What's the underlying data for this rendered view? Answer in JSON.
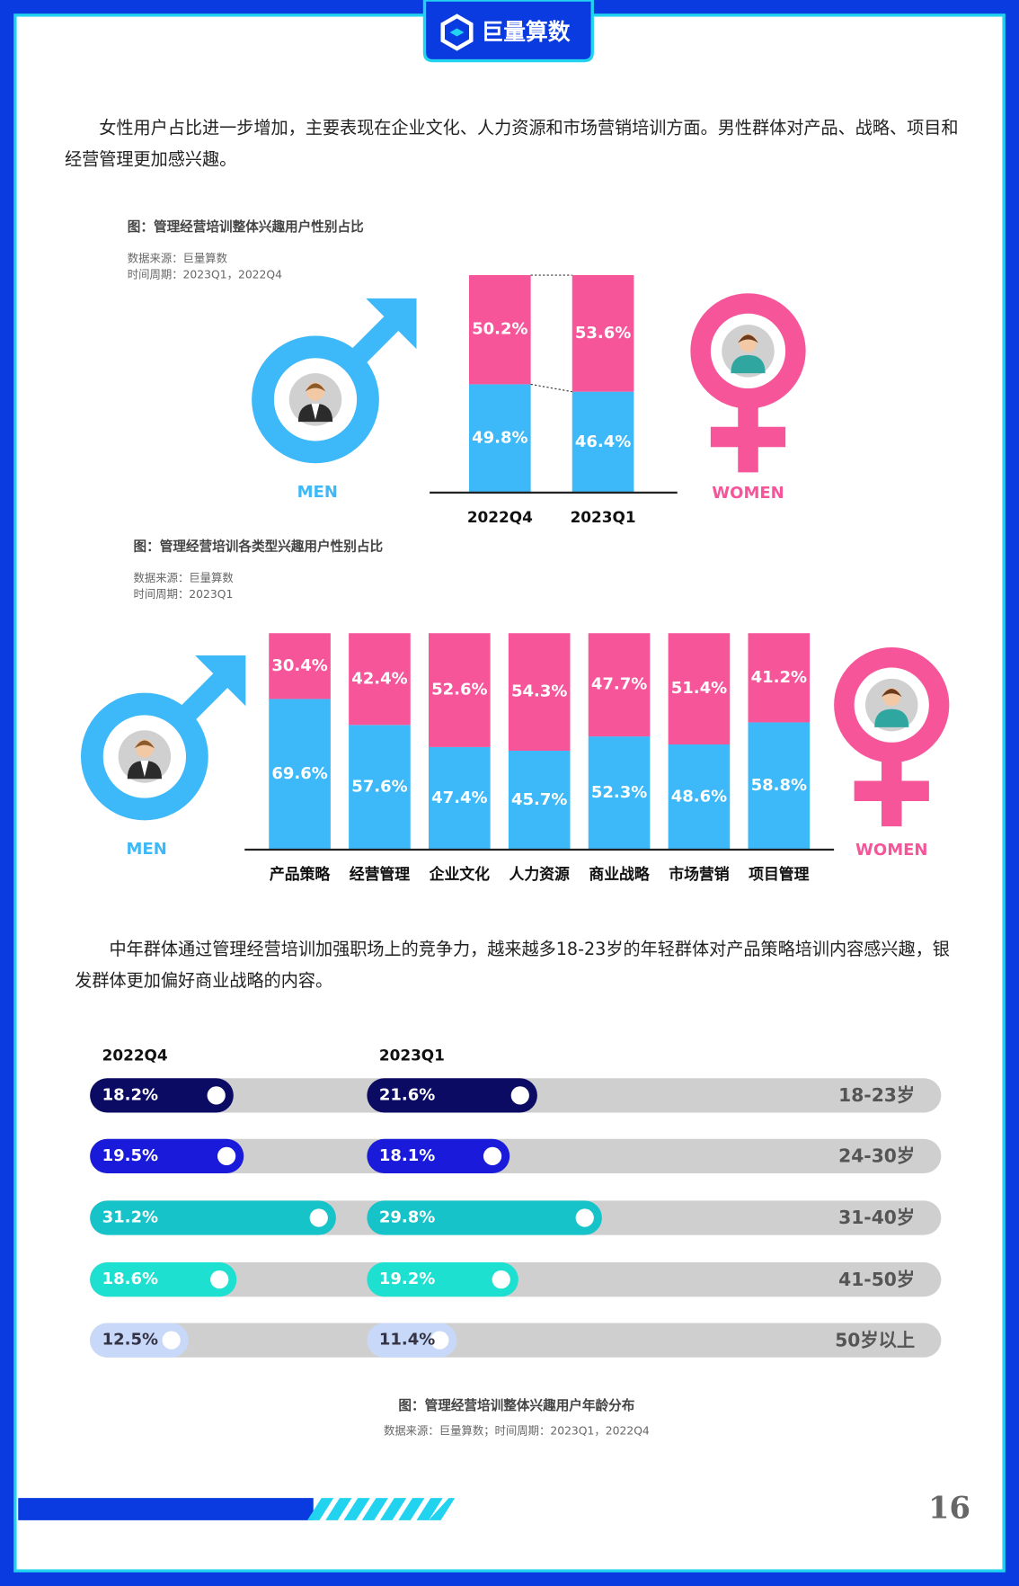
{
  "logo": "巨量算数",
  "paragraphs": [
    "女性用户占比进一步增加，主要表现在企业文化、人力资源和市场营销培训方面。男性群体对产品、战略、项目和经营管理更加感兴趣。",
    "中年群体通过管理经营培训加强职场上的竞争力，越来越多18-23岁的年轻群体对产品策略培训内容感兴趣，银发群体更加偏好商业战略的内容。"
  ],
  "chart_data": [
    {
      "type": "stacked_bar",
      "title": "图：管理经营培训整体兴趣用户性别占比",
      "source": "数据来源：巨量算数",
      "period": "时间周期：2023Q1，2022Q4",
      "categories": [
        "2022Q4",
        "2023Q1"
      ],
      "ylim": [
        0,
        100
      ],
      "series": [
        {
          "name": "MEN",
          "color": "#3db8f8",
          "values": [
            49.8,
            46.4
          ],
          "value_labels": [
            "49.8%",
            "46.4%"
          ]
        },
        {
          "name": "WOMEN",
          "color": "#f7559a",
          "values": [
            50.2,
            53.6
          ],
          "value_labels": [
            "50.2%",
            "53.6%"
          ]
        }
      ]
    },
    {
      "type": "stacked_bar",
      "title": "图：管理经营培训各类型兴趣用户性别占比",
      "source": "数据来源：巨量算数",
      "period": "时间周期：2023Q1",
      "categories": [
        "产品策略",
        "经营管理",
        "企业文化",
        "人力资源",
        "商业战略",
        "市场营销",
        "项目管理"
      ],
      "ylim": [
        0,
        100
      ],
      "series": [
        {
          "name": "MEN",
          "color": "#3db8f8",
          "values": [
            69.6,
            57.6,
            47.4,
            45.7,
            52.3,
            48.6,
            58.8
          ],
          "value_labels": [
            "69.6%",
            "57.6%",
            "47.4%",
            "45.7%",
            "52.3%",
            "48.6%",
            "58.8%"
          ]
        },
        {
          "name": "WOMEN",
          "color": "#f7559a",
          "values": [
            30.4,
            42.4,
            52.6,
            54.3,
            47.7,
            51.4,
            41.2
          ],
          "value_labels": [
            "30.4%",
            "42.4%",
            "52.6%",
            "54.3%",
            "47.7%",
            "51.4%",
            "41.2%"
          ]
        }
      ]
    },
    {
      "type": "pill_bar",
      "title": "图：管理经营培训整体兴趣用户年龄分布",
      "source": "数据来源：巨量算数；时间周期：2023Q1，2022Q4",
      "categories": [
        "18-23岁",
        "24-30岁",
        "31-40岁",
        "41-50岁",
        "50岁以上"
      ],
      "colors": [
        "#0b0b63",
        "#1a1adb",
        "#15c3c9",
        "#1de0d0",
        "#c8d8f8"
      ],
      "series": [
        {
          "name": "2022Q4",
          "values": [
            18.2,
            19.5,
            31.2,
            18.6,
            12.5
          ],
          "value_labels": [
            "18.2%",
            "19.5%",
            "31.2%",
            "18.6%",
            "12.5%"
          ]
        },
        {
          "name": "2023Q1",
          "values": [
            21.6,
            18.1,
            29.8,
            19.2,
            11.4
          ],
          "value_labels": [
            "21.6%",
            "18.1%",
            "29.8%",
            "19.2%",
            "11.4%"
          ]
        }
      ]
    }
  ],
  "page_number": "16"
}
